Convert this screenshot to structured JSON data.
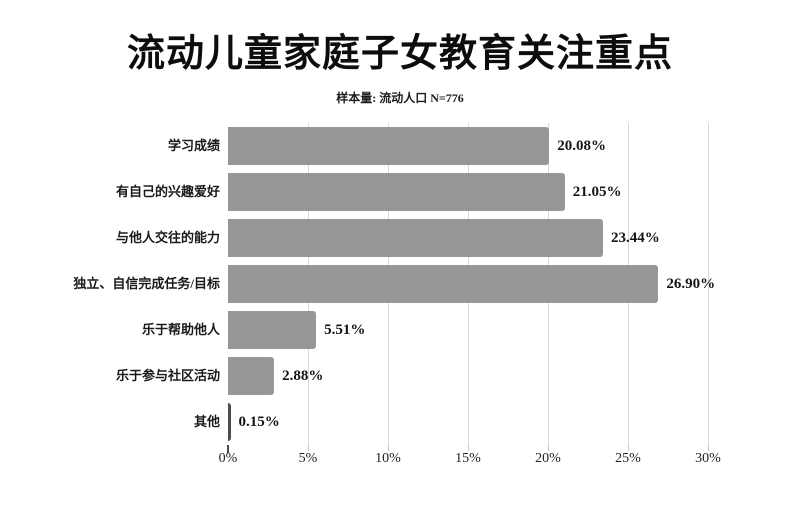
{
  "header": {
    "title": "流动儿童家庭子女教育关注重点",
    "subtitle": "样本量: 流动人口 N=776"
  },
  "chart_data": {
    "type": "bar",
    "orientation": "horizontal",
    "title": "流动儿童家庭子女教育关注重点",
    "subtitle": "样本量: 流动人口 N=776",
    "categories": [
      "学习成绩",
      "有自己的兴趣爱好",
      "与他人交往的能力",
      "独立、自信完成任务/目标",
      "乐于帮助他人",
      "乐于参与社区活动",
      "其他"
    ],
    "values": [
      20.08,
      21.05,
      23.44,
      26.9,
      5.51,
      2.88,
      0.15
    ],
    "value_labels": [
      "20.08%",
      "21.05%",
      "23.44%",
      "26.90%",
      "5.51%",
      "2.88%",
      "0.15%"
    ],
    "xlabel": "",
    "ylabel": "",
    "xlim": [
      0,
      30
    ],
    "x_tick_values": [
      0,
      5,
      10,
      15,
      20,
      25,
      30
    ],
    "x_ticks": [
      "0%",
      "5%",
      "10%",
      "15%",
      "20%",
      "25%",
      "30%"
    ],
    "grid": "vertical",
    "legend": "none",
    "colors": {
      "bar": "#979797",
      "thin_bar": "#4d4d4d",
      "gridline": "#d9d9d9",
      "text": "#141414",
      "background": "#ffffff"
    }
  }
}
